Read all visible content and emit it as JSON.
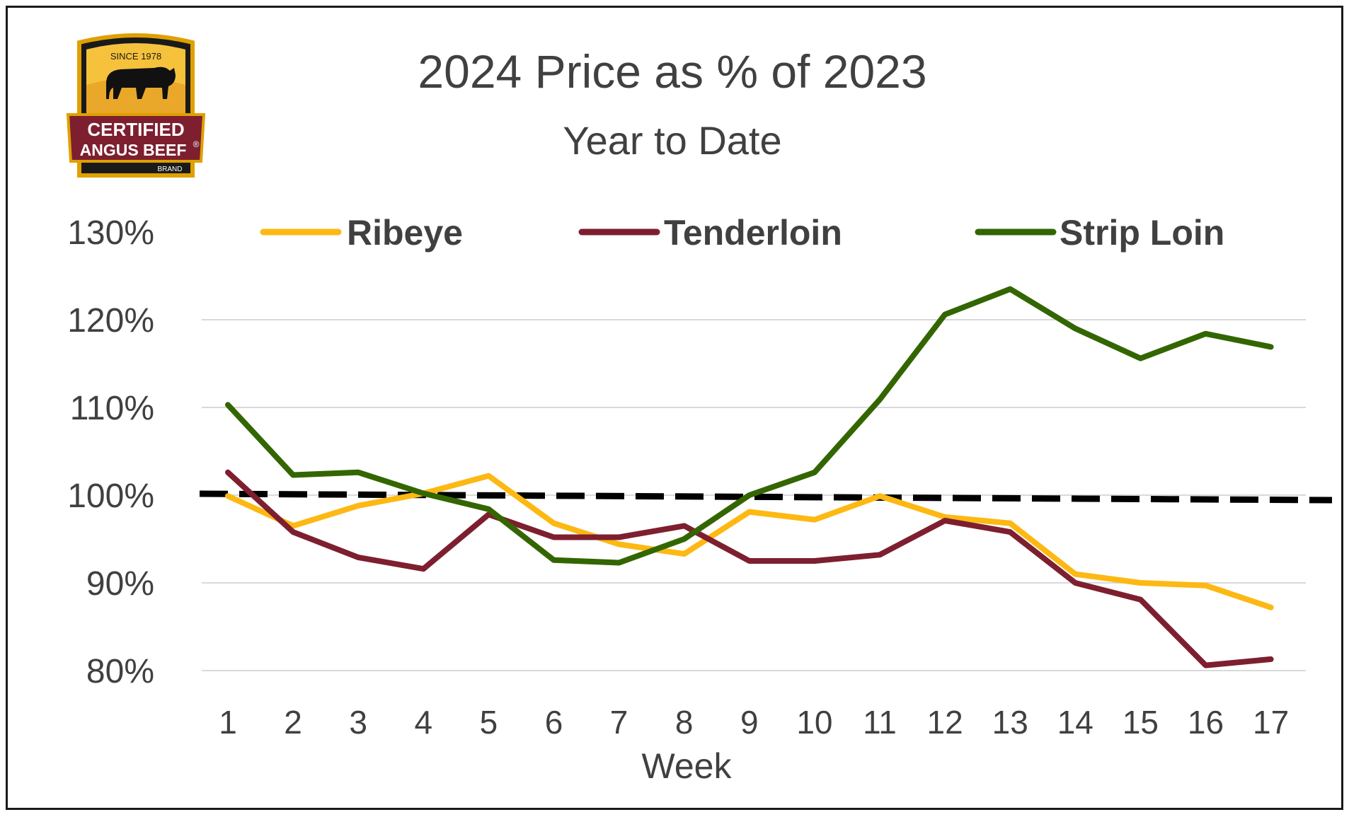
{
  "logo": {
    "since": "SINCE 1978",
    "line1": "CERTIFIED",
    "line2": "ANGUS BEEF",
    "reg": "®",
    "brand": "BRAND"
  },
  "chart_data": {
    "type": "line",
    "title": "2024 Price as % of 2023",
    "subtitle": "Year to Date",
    "xlabel": "Week",
    "ylabel": "",
    "categories": [
      "1",
      "2",
      "3",
      "4",
      "5",
      "6",
      "7",
      "8",
      "9",
      "10",
      "11",
      "12",
      "13",
      "14",
      "15",
      "16",
      "17"
    ],
    "ylim": [
      80,
      130
    ],
    "yticks": [
      80,
      90,
      100,
      110,
      120,
      130
    ],
    "ytick_labels": [
      "80%",
      "90%",
      "100%",
      "110%",
      "120%",
      "130%"
    ],
    "grid": true,
    "legend_position": "top",
    "reference_line": {
      "value": 100,
      "style": "dashed",
      "color": "#000000"
    },
    "series": [
      {
        "name": "Ribeye",
        "color": "#FDB813",
        "values": [
          99.9,
          96.5,
          98.8,
          100.2,
          102.2,
          96.8,
          94.4,
          93.3,
          98.1,
          97.2,
          99.9,
          97.5,
          96.8,
          91.0,
          90.0,
          89.7,
          87.2
        ]
      },
      {
        "name": "Tenderloin",
        "color": "#7D1F2F",
        "values": [
          102.6,
          95.8,
          92.9,
          91.6,
          97.8,
          95.2,
          95.2,
          96.5,
          92.5,
          92.5,
          93.2,
          97.1,
          95.8,
          90.0,
          88.1,
          80.6,
          81.3
        ]
      },
      {
        "name": "Strip Loin",
        "color": "#336600",
        "values": [
          110.3,
          102.3,
          102.6,
          100.2,
          98.4,
          92.6,
          92.3,
          95.0,
          100.0,
          102.6,
          110.9,
          120.6,
          123.5,
          119.0,
          115.6,
          118.4,
          116.9
        ]
      }
    ]
  }
}
